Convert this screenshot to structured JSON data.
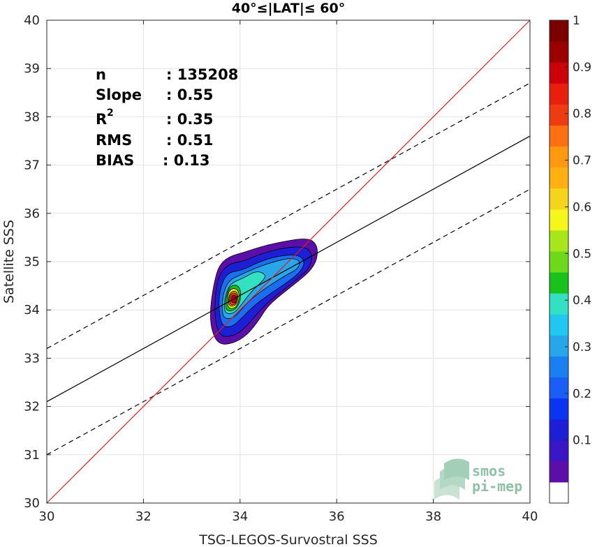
{
  "chart_data": {
    "type": "density-contour-scatter",
    "title": "40°≤|LAT|≤ 60°",
    "xlabel": "TSG-LEGOS-Survostral SSS",
    "ylabel": "Satellite SSS",
    "xlim": [
      30,
      40
    ],
    "ylim": [
      30,
      40
    ],
    "xticks": [
      "30",
      "32",
      "34",
      "36",
      "38",
      "40"
    ],
    "yticks": [
      "30",
      "31",
      "32",
      "33",
      "34",
      "35",
      "36",
      "37",
      "38",
      "39",
      "40"
    ],
    "grid": true,
    "stats": {
      "n_label": "n",
      "n_value": ": 135208",
      "slope_label": "Slope",
      "slope_value": ": 0.55",
      "r2_label": "R",
      "r2_sup": "2",
      "r2_value": ": 0.35",
      "rms_label": "RMS",
      "rms_value": ": 0.51",
      "bias_label": "BIAS",
      "bias_value": ": 0.13"
    },
    "lines": {
      "identity": {
        "color": "#e41a1c",
        "x": [
          30,
          40
        ],
        "y": [
          30,
          40
        ]
      },
      "fit": {
        "color": "#000000",
        "x": [
          30,
          40
        ],
        "y": [
          32.1,
          37.6
        ]
      },
      "fit_upper": {
        "color": "#000000",
        "style": "dashed",
        "x": [
          30,
          40
        ],
        "y": [
          33.2,
          38.7
        ]
      },
      "fit_lower": {
        "color": "#000000",
        "style": "dashed",
        "x": [
          30,
          40
        ],
        "y": [
          31.0,
          36.5
        ]
      }
    },
    "density": {
      "peak": [
        33.88,
        34.22
      ],
      "levels": [
        {
          "level": 0.05,
          "color": "#5b0fa8",
          "poly": [
            [
              33.55,
              33.28
            ],
            [
              33.85,
              33.3
            ],
            [
              34.15,
              33.48
            ],
            [
              34.4,
              33.8
            ],
            [
              34.55,
              34.05
            ],
            [
              34.8,
              34.28
            ],
            [
              35.15,
              34.55
            ],
            [
              35.45,
              34.8
            ],
            [
              35.6,
              35.05
            ],
            [
              35.6,
              35.35
            ],
            [
              35.4,
              35.5
            ],
            [
              34.8,
              35.4
            ],
            [
              34.4,
              35.3
            ],
            [
              34.1,
              35.2
            ],
            [
              33.75,
              35.1
            ],
            [
              33.55,
              34.9
            ],
            [
              33.45,
              34.5
            ],
            [
              33.38,
              34.0
            ],
            [
              33.4,
              33.6
            ]
          ]
        },
        {
          "level": 0.15,
          "color": "#1d1fd6",
          "poly": [
            [
              33.58,
              33.45
            ],
            [
              33.85,
              33.45
            ],
            [
              34.1,
              33.62
            ],
            [
              34.35,
              33.92
            ],
            [
              34.6,
              34.18
            ],
            [
              34.9,
              34.42
            ],
            [
              35.2,
              34.65
            ],
            [
              35.45,
              34.88
            ],
            [
              35.5,
              35.15
            ],
            [
              35.35,
              35.32
            ],
            [
              34.85,
              35.28
            ],
            [
              34.4,
              35.15
            ],
            [
              34.05,
              35.0
            ],
            [
              33.75,
              34.95
            ],
            [
              33.55,
              34.7
            ],
            [
              33.48,
              34.25
            ],
            [
              33.48,
              33.8
            ]
          ]
        },
        {
          "level": 0.25,
          "color": "#1a6ff0",
          "poly": [
            [
              33.62,
              33.65
            ],
            [
              33.85,
              33.65
            ],
            [
              34.05,
              33.85
            ],
            [
              34.3,
              34.1
            ],
            [
              34.6,
              34.32
            ],
            [
              34.95,
              34.55
            ],
            [
              35.25,
              34.78
            ],
            [
              35.35,
              35.0
            ],
            [
              35.2,
              35.15
            ],
            [
              34.8,
              35.12
            ],
            [
              34.4,
              35.0
            ],
            [
              34.05,
              34.82
            ],
            [
              33.75,
              34.78
            ],
            [
              33.6,
              34.5
            ],
            [
              33.55,
              34.1
            ]
          ]
        },
        {
          "level": 0.35,
          "color": "#27a6ea",
          "poly": [
            [
              33.66,
              33.82
            ],
            [
              33.85,
              33.82
            ],
            [
              34.02,
              34.0
            ],
            [
              34.25,
              34.25
            ],
            [
              34.6,
              34.5
            ],
            [
              34.95,
              34.72
            ],
            [
              35.2,
              34.85
            ],
            [
              35.25,
              35.02
            ],
            [
              35.05,
              35.08
            ],
            [
              34.7,
              35.0
            ],
            [
              34.35,
              34.88
            ],
            [
              34.0,
              34.72
            ],
            [
              33.78,
              34.62
            ],
            [
              33.66,
              34.38
            ],
            [
              33.62,
              34.05
            ]
          ]
        },
        {
          "level": 0.45,
          "color": "#33e0c2",
          "poly": [
            [
              33.7,
              33.92
            ],
            [
              33.88,
              33.93
            ],
            [
              34.02,
              34.1
            ],
            [
              34.25,
              34.4
            ],
            [
              34.45,
              34.58
            ],
            [
              34.55,
              34.72
            ],
            [
              34.35,
              34.82
            ],
            [
              34.05,
              34.65
            ],
            [
              33.8,
              34.55
            ],
            [
              33.7,
              34.3
            ],
            [
              33.67,
              34.08
            ]
          ]
        },
        {
          "level": 0.55,
          "color": "#19c21b",
          "poly": [
            [
              33.72,
              33.98
            ],
            [
              33.88,
              33.98
            ],
            [
              34.0,
              34.15
            ],
            [
              34.02,
              34.38
            ],
            [
              33.95,
              34.52
            ],
            [
              33.8,
              34.5
            ],
            [
              33.72,
              34.3
            ],
            [
              33.7,
              34.1
            ]
          ]
        },
        {
          "level": 0.65,
          "color": "#f6e81c",
          "poly": [
            [
              33.75,
              34.03
            ],
            [
              33.9,
              34.03
            ],
            [
              33.98,
              34.18
            ],
            [
              33.98,
              34.38
            ],
            [
              33.88,
              34.46
            ],
            [
              33.77,
              34.4
            ],
            [
              33.74,
              34.22
            ]
          ]
        },
        {
          "level": 0.75,
          "color": "#ff9a0f",
          "poly": [
            [
              33.77,
              34.08
            ],
            [
              33.9,
              34.08
            ],
            [
              33.96,
              34.2
            ],
            [
              33.95,
              34.36
            ],
            [
              33.87,
              34.4
            ],
            [
              33.79,
              34.35
            ],
            [
              33.76,
              34.22
            ]
          ]
        },
        {
          "level": 0.85,
          "color": "#ef3b12",
          "poly": [
            [
              33.79,
              34.11
            ],
            [
              33.9,
              34.11
            ],
            [
              33.94,
              34.22
            ],
            [
              33.93,
              34.33
            ],
            [
              33.86,
              34.36
            ],
            [
              33.8,
              34.32
            ],
            [
              33.78,
              34.22
            ]
          ]
        },
        {
          "level": 0.95,
          "color": "#b8000a",
          "poly": [
            [
              33.82,
              34.15
            ],
            [
              33.91,
              34.15
            ],
            [
              33.93,
              34.22
            ],
            [
              33.91,
              34.3
            ],
            [
              33.85,
              34.31
            ],
            [
              33.82,
              34.26
            ]
          ]
        }
      ]
    },
    "colorbar": {
      "colors": [
        "#ffffff",
        "#5b0fa8",
        "#3a16c4",
        "#1d1fd6",
        "#0b34f2",
        "#1a5ff5",
        "#1a7ff0",
        "#27a6ea",
        "#20c8f0",
        "#33e0c2",
        "#19c21b",
        "#6ed81a",
        "#a6e61a",
        "#f6f61c",
        "#f6d41c",
        "#ffb012",
        "#ff9a0f",
        "#ff7012",
        "#ef3b12",
        "#e81f0c",
        "#cc0008",
        "#9a0000",
        "#7a0000"
      ],
      "ticks": [
        "0.1",
        "0.2",
        "0.3",
        "0.4",
        "0.5",
        "0.6",
        "0.7",
        "0.8",
        "0.9",
        "1"
      ],
      "tick_values": [
        0.1,
        0.2,
        0.3,
        0.4,
        0.5,
        0.6,
        0.7,
        0.8,
        0.9,
        1.0
      ]
    },
    "logo": {
      "line1": "smos",
      "line2": "pi-mep"
    }
  }
}
